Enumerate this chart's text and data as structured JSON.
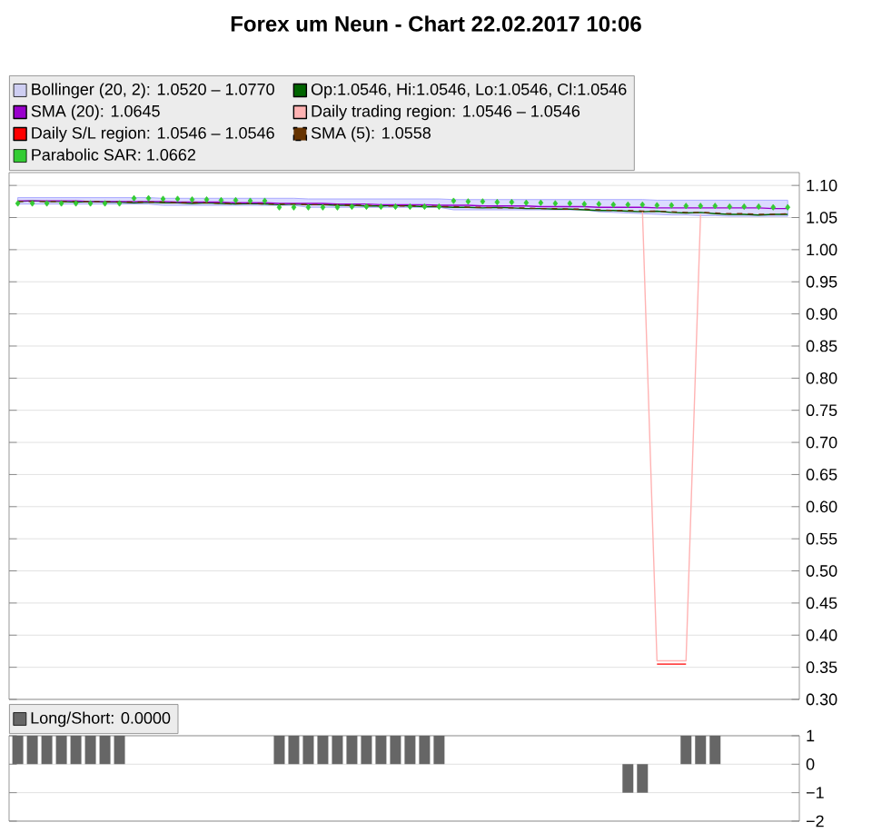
{
  "chart_data": [
    {
      "type": "line",
      "title": "Forex um Neun - Chart 22.02.2017 10:06",
      "categories": [
        null,
        null,
        null,
        null,
        null,
        null,
        null,
        null,
        null,
        null,
        null,
        null,
        null,
        null,
        null,
        null,
        null,
        null,
        null,
        null,
        null,
        null,
        null,
        null,
        null,
        null,
        null,
        null,
        null,
        null,
        null,
        null,
        null,
        null,
        null,
        null,
        null,
        null,
        null,
        null,
        null,
        null,
        null,
        null,
        null,
        null,
        null,
        null,
        null,
        null,
        null,
        null,
        null,
        null
      ],
      "ylim": [
        0.3,
        1.12
      ],
      "yticks": [
        {
          "value": 0.3,
          "label": "0.30"
        },
        {
          "value": 0.35,
          "label": "0.35"
        },
        {
          "value": 0.4,
          "label": "0.40"
        },
        {
          "value": 0.45,
          "label": "0.45"
        },
        {
          "value": 0.5,
          "label": "0.50"
        },
        {
          "value": 0.55,
          "label": "0.55"
        },
        {
          "value": 0.6,
          "label": "0.60"
        },
        {
          "value": 0.65,
          "label": "0.65"
        },
        {
          "value": 0.7,
          "label": "0.70"
        },
        {
          "value": 0.75,
          "label": "0.75"
        },
        {
          "value": 0.8,
          "label": "0.80"
        },
        {
          "value": 0.85,
          "label": "0.85"
        },
        {
          "value": 0.9,
          "label": "0.90"
        },
        {
          "value": 0.95,
          "label": "0.95"
        },
        {
          "value": 1.0,
          "label": "1.00"
        },
        {
          "value": 1.05,
          "label": "1.05"
        },
        {
          "value": 1.1,
          "label": "1.10"
        }
      ],
      "grid": "y",
      "tick_labels": "y",
      "legend": "top",
      "series": [
        {
          "name": "Op:1.0546, Hi:1.0546, Lo:1.0546, Cl:1.0546",
          "color": "#006400",
          "values": [
            1.075,
            1.076,
            1.075,
            1.075,
            1.074,
            1.075,
            1.074,
            1.074,
            1.073,
            1.074,
            1.073,
            1.073,
            1.072,
            1.073,
            1.072,
            1.071,
            1.072,
            1.071,
            1.07,
            1.071,
            1.07,
            1.07,
            1.069,
            1.069,
            1.068,
            1.068,
            1.069,
            1.068,
            1.067,
            1.067,
            1.066,
            1.066,
            1.065,
            1.066,
            1.065,
            1.064,
            1.064,
            1.063,
            1.063,
            1.062,
            1.061,
            1.061,
            1.06,
            1.059,
            1.06,
            1.058,
            1.057,
            1.058,
            1.056,
            1.055,
            1.055,
            1.054,
            1.055,
            1.055
          ]
        },
        {
          "name": "SMA (5): 1.0558",
          "color": "#663300",
          "line_style": "dashed",
          "values": [
            1.075,
            1.075,
            1.075,
            1.075,
            1.075,
            1.075,
            1.075,
            1.074,
            1.074,
            1.074,
            1.074,
            1.073,
            1.073,
            1.073,
            1.072,
            1.072,
            1.072,
            1.071,
            1.071,
            1.071,
            1.07,
            1.07,
            1.07,
            1.069,
            1.069,
            1.068,
            1.068,
            1.068,
            1.068,
            1.067,
            1.067,
            1.066,
            1.066,
            1.065,
            1.065,
            1.065,
            1.064,
            1.064,
            1.063,
            1.063,
            1.062,
            1.061,
            1.061,
            1.06,
            1.06,
            1.059,
            1.058,
            1.058,
            1.057,
            1.056,
            1.056,
            1.055,
            1.055,
            1.056
          ]
        },
        {
          "name": "SMA (20): 1.0645",
          "color": "#9900cc",
          "values": [
            1.076,
            1.076,
            1.076,
            1.076,
            1.076,
            1.075,
            1.075,
            1.075,
            1.075,
            1.075,
            1.075,
            1.074,
            1.074,
            1.074,
            1.074,
            1.073,
            1.073,
            1.073,
            1.072,
            1.072,
            1.072,
            1.072,
            1.071,
            1.071,
            1.071,
            1.07,
            1.07,
            1.07,
            1.07,
            1.069,
            1.069,
            1.069,
            1.068,
            1.068,
            1.068,
            1.068,
            1.067,
            1.067,
            1.067,
            1.067,
            1.066,
            1.066,
            1.066,
            1.066,
            1.065,
            1.065,
            1.065,
            1.065,
            1.065,
            1.065,
            1.065,
            1.065,
            1.064,
            1.064
          ]
        },
        {
          "name": "Bollinger (20, 2): 1.0520 – 1.0770",
          "color": "#9999ff",
          "type": "area",
          "values": [
            null,
            null,
            null,
            null,
            null,
            null,
            null,
            null,
            null,
            null,
            null,
            null,
            null,
            null,
            null,
            null,
            null,
            null,
            null,
            null,
            null,
            null,
            null,
            null,
            null,
            null,
            null,
            null,
            null,
            null,
            null,
            null,
            null,
            null,
            null,
            null,
            null,
            null,
            null,
            null,
            null,
            null,
            null,
            null,
            null,
            null,
            null,
            null,
            null,
            null,
            null,
            null,
            null,
            null
          ],
          "upper": [
            1.081,
            1.081,
            1.081,
            1.081,
            1.081,
            1.081,
            1.081,
            1.081,
            1.081,
            1.081,
            1.08,
            1.08,
            1.08,
            1.08,
            1.08,
            1.08,
            1.08,
            1.08,
            1.08,
            1.08,
            1.079,
            1.079,
            1.079,
            1.079,
            1.079,
            1.079,
            1.079,
            1.079,
            1.079,
            1.079,
            1.078,
            1.078,
            1.078,
            1.078,
            1.078,
            1.078,
            1.078,
            1.078,
            1.078,
            1.078,
            1.078,
            1.078,
            1.078,
            1.078,
            1.077,
            1.077,
            1.077,
            1.077,
            1.077,
            1.077,
            1.077,
            1.077,
            1.077,
            1.077
          ],
          "lower": [
            1.071,
            1.071,
            1.071,
            1.071,
            1.071,
            1.071,
            1.071,
            1.071,
            1.071,
            1.071,
            1.069,
            1.069,
            1.069,
            1.069,
            1.069,
            1.069,
            1.069,
            1.069,
            1.069,
            1.069,
            1.066,
            1.066,
            1.066,
            1.066,
            1.066,
            1.066,
            1.066,
            1.066,
            1.066,
            1.066,
            1.062,
            1.062,
            1.062,
            1.062,
            1.062,
            1.062,
            1.062,
            1.062,
            1.062,
            1.062,
            1.059,
            1.058,
            1.057,
            1.056,
            1.055,
            1.054,
            1.054,
            1.053,
            1.053,
            1.052,
            1.052,
            1.052,
            1.052,
            1.052
          ]
        },
        {
          "name": "Daily trading region: 1.0546 – 1.0546",
          "color": "#ffb3b3",
          "values": [
            null,
            null,
            null,
            null,
            null,
            null,
            null,
            null,
            null,
            null,
            null,
            null,
            null,
            null,
            null,
            null,
            null,
            null,
            null,
            null,
            null,
            null,
            null,
            null,
            null,
            null,
            null,
            null,
            null,
            null,
            null,
            null,
            null,
            null,
            null,
            null,
            null,
            null,
            null,
            null,
            null,
            null,
            null,
            1.06,
            0.36,
            0.36,
            0.36,
            1.055,
            null,
            null,
            null,
            null,
            null,
            null
          ]
        },
        {
          "name": "Daily S/L region: 1.0546 – 1.0546",
          "color": "#ff0000",
          "values": [
            null,
            null,
            null,
            null,
            null,
            null,
            null,
            null,
            null,
            null,
            null,
            null,
            null,
            null,
            null,
            null,
            null,
            null,
            null,
            null,
            null,
            null,
            null,
            null,
            null,
            null,
            null,
            null,
            null,
            null,
            null,
            null,
            null,
            null,
            null,
            null,
            null,
            null,
            null,
            null,
            null,
            null,
            null,
            null,
            0.355,
            0.355,
            0.355,
            null,
            null,
            null,
            null,
            null,
            null,
            null
          ]
        },
        {
          "name": "Parabolic SAR: 1.0662",
          "color": "#33cc33",
          "type": "scatter",
          "marker": "diamond",
          "values": [
            1.072,
            1.072,
            1.072,
            1.072,
            1.072,
            1.072,
            1.072,
            1.072,
            1.08,
            1.08,
            1.079,
            1.079,
            1.078,
            1.078,
            1.077,
            1.077,
            1.076,
            1.076,
            1.066,
            1.066,
            1.066,
            1.066,
            1.066,
            1.067,
            1.067,
            1.067,
            1.067,
            1.067,
            1.067,
            1.067,
            1.076,
            1.075,
            1.075,
            1.074,
            1.074,
            1.073,
            1.073,
            1.072,
            1.072,
            1.071,
            1.071,
            1.07,
            1.07,
            1.07,
            1.069,
            1.069,
            1.068,
            1.068,
            1.068,
            1.067,
            1.067,
            1.067,
            1.066,
            1.066
          ]
        }
      ]
    },
    {
      "type": "bar",
      "categories": [
        null,
        null,
        null,
        null,
        null,
        null,
        null,
        null,
        null,
        null,
        null,
        null,
        null,
        null,
        null,
        null,
        null,
        null,
        null,
        null,
        null,
        null,
        null,
        null,
        null,
        null,
        null,
        null,
        null,
        null,
        null,
        null,
        null,
        null,
        null,
        null,
        null,
        null,
        null,
        null,
        null,
        null,
        null,
        null,
        null,
        null,
        null,
        null,
        null,
        null,
        null,
        null,
        null,
        null
      ],
      "ylim": [
        -2,
        1
      ],
      "yticks": [
        1,
        0,
        {
          "value": -1,
          "label": "−1"
        },
        {
          "value": -2,
          "label": "−2"
        }
      ],
      "grid": "y",
      "tick_labels": "y",
      "legend": "top",
      "series": [
        {
          "name": "Long/Short: 0.0000",
          "color": "#666666",
          "values": [
            1,
            1,
            1,
            1,
            1,
            1,
            1,
            1,
            0,
            0,
            0,
            0,
            0,
            0,
            0,
            0,
            0,
            0,
            1,
            1,
            1,
            1,
            1,
            1,
            1,
            1,
            1,
            1,
            1,
            1,
            0,
            0,
            0,
            0,
            0,
            0,
            0,
            0,
            0,
            0,
            0,
            0,
            -1,
            -1,
            0,
            0,
            1,
            1,
            1,
            0,
            0,
            0,
            0,
            0
          ]
        }
      ]
    }
  ]
}
